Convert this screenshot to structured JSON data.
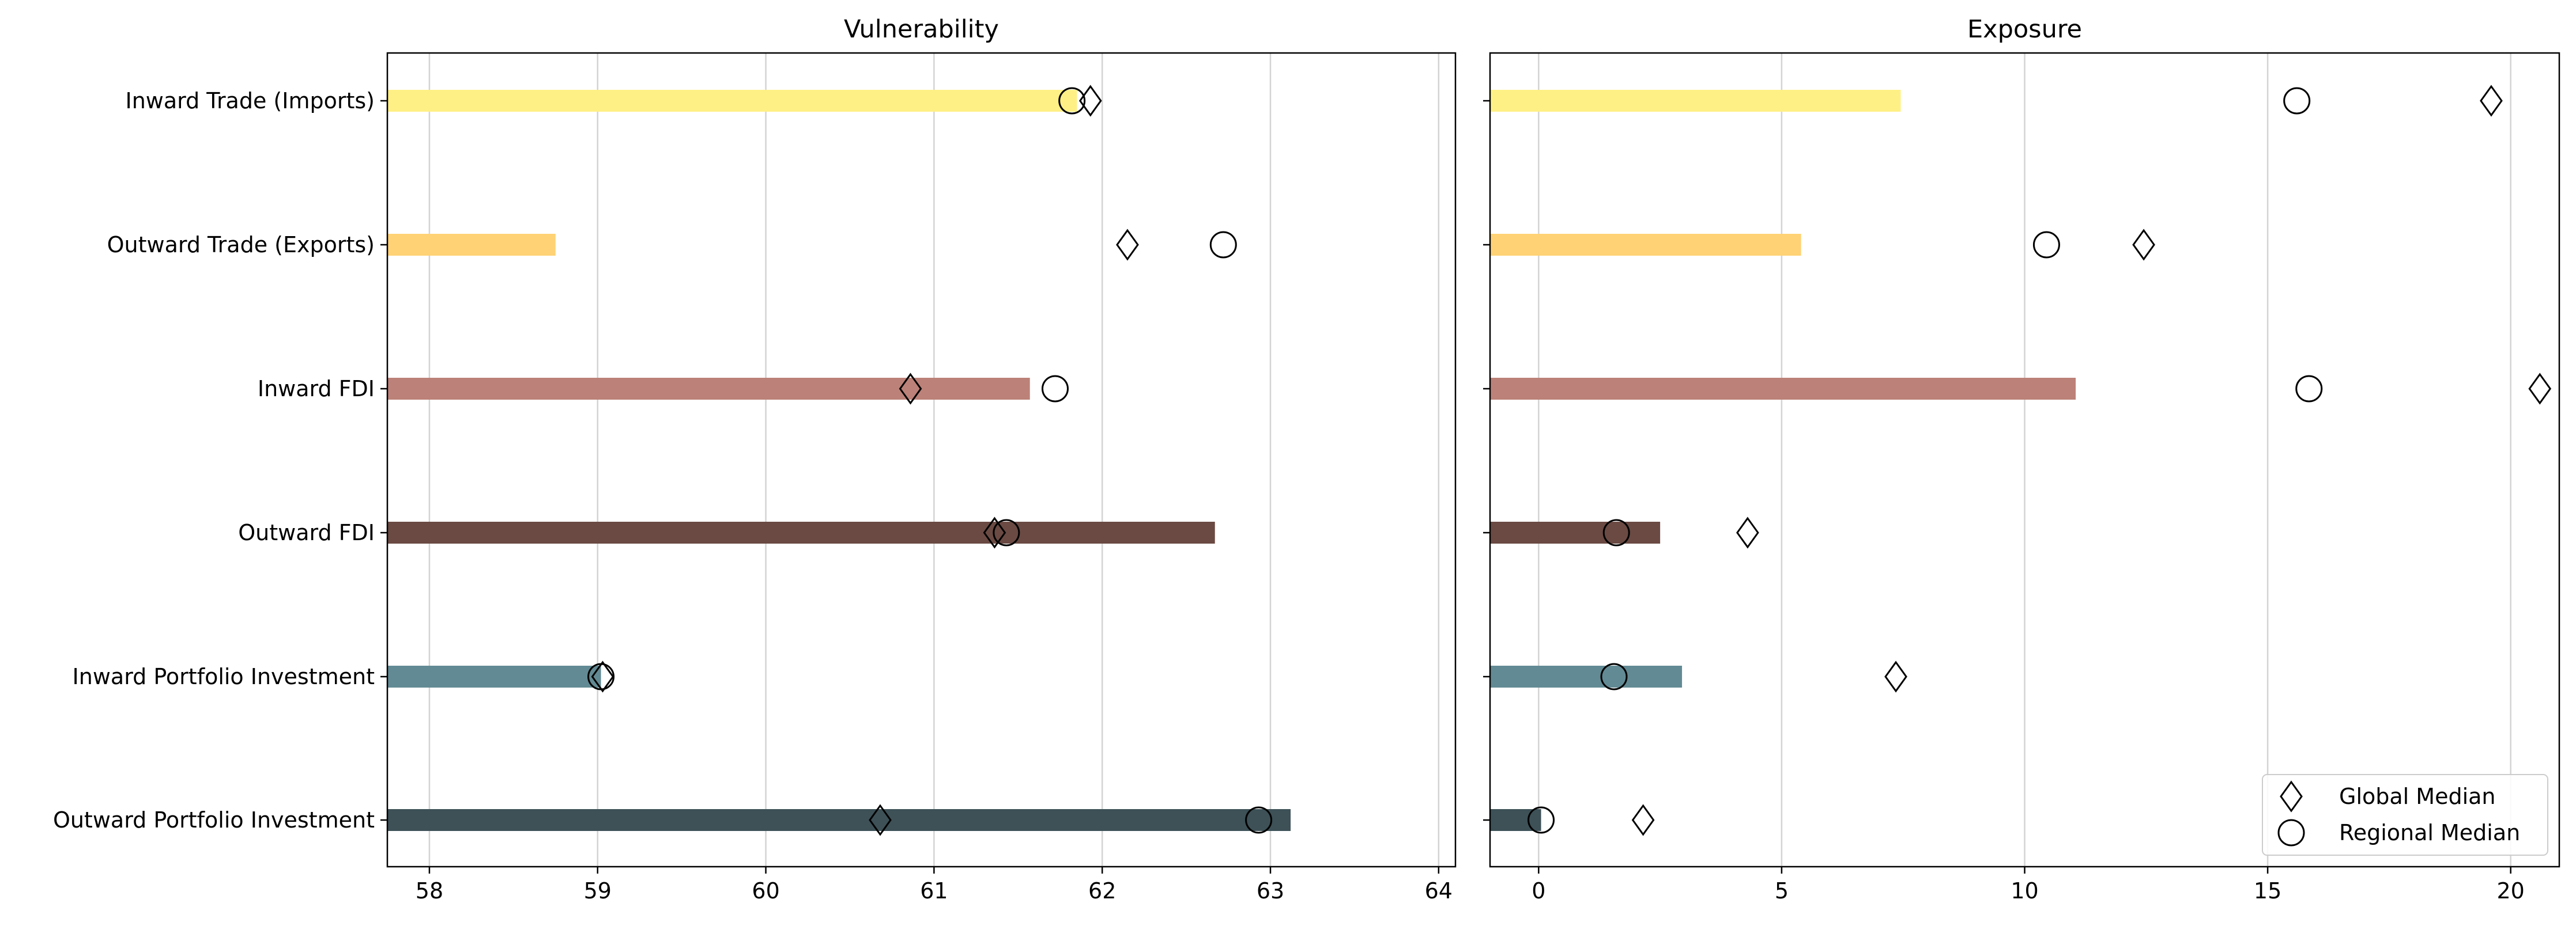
{
  "chart_data": [
    {
      "type": "bar",
      "orientation": "horizontal",
      "title": "Vulnerability",
      "xlabel": "",
      "ylabel": "",
      "categories": [
        "Inward Trade (Imports)",
        "Outward Trade (Exports)",
        "Inward FDI",
        "Outward FDI",
        "Inward Portfolio Investment",
        "Outward Portfolio Investment"
      ],
      "xlim": [
        57.75,
        64.1
      ],
      "xticks": [
        "58",
        "59",
        "60",
        "61",
        "62",
        "63",
        "64"
      ],
      "grid": "vertical",
      "values": [
        61.85,
        58.75,
        61.57,
        62.67,
        59.02,
        63.12
      ],
      "colors": [
        "#fff085",
        "#ffd275",
        "#bc8178",
        "#6a4a43",
        "#628a94",
        "#3d5157"
      ],
      "markers": [
        {
          "name": "Global Median",
          "shape": "diamond",
          "values": [
            61.93,
            62.15,
            60.86,
            61.36,
            59.03,
            60.68
          ]
        },
        {
          "name": "Regional Median",
          "shape": "circle",
          "values": [
            61.82,
            62.72,
            61.72,
            61.43,
            59.02,
            62.93
          ]
        }
      ]
    },
    {
      "type": "bar",
      "orientation": "horizontal",
      "title": "Exposure",
      "xlabel": "",
      "ylabel": "",
      "categories": [
        "Inward Trade (Imports)",
        "Outward Trade (Exports)",
        "Inward FDI",
        "Outward FDI",
        "Inward Portfolio Investment",
        "Outward Portfolio Investment"
      ],
      "xlim": [
        -1.0,
        21.0
      ],
      "xticks": [
        "0",
        "5",
        "10",
        "15",
        "20"
      ],
      "grid": "vertical",
      "values": [
        7.45,
        5.4,
        11.05,
        2.5,
        2.95,
        0.05
      ],
      "colors": [
        "#fff085",
        "#ffd275",
        "#bc8178",
        "#6a4a43",
        "#628a94",
        "#3d5157"
      ],
      "markers": [
        {
          "name": "Global Median",
          "shape": "diamond",
          "values": [
            19.6,
            12.45,
            20.6,
            4.3,
            7.35,
            2.15
          ]
        },
        {
          "name": "Regional Median",
          "shape": "circle",
          "values": [
            15.6,
            10.45,
            15.85,
            1.6,
            1.55,
            0.05
          ]
        }
      ],
      "legend": {
        "position": "lower-right",
        "entries": [
          "Global Median",
          "Regional Median"
        ]
      }
    }
  ]
}
